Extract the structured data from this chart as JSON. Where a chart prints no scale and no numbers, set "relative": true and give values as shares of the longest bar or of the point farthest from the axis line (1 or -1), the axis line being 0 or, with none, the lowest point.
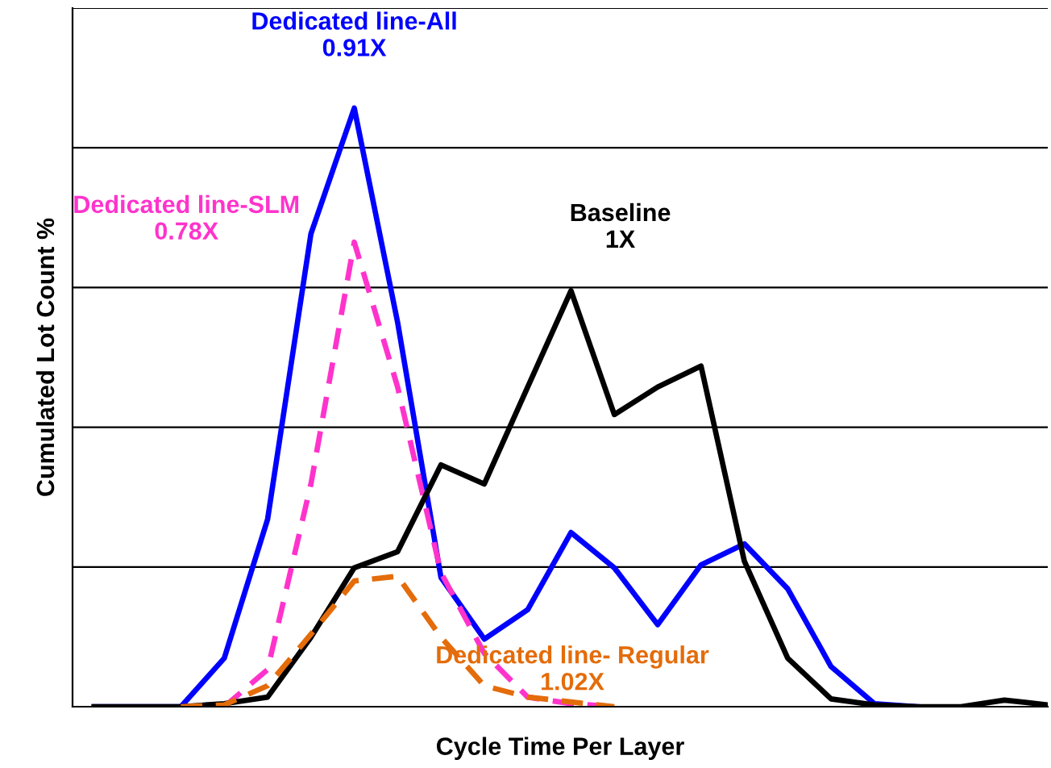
{
  "chart_data": {
    "type": "line",
    "relative": true,
    "xlabel": "Cycle Time Per Layer",
    "ylabel": "Cumulated Lot Count %",
    "grid": "y",
    "legend": false,
    "categories": [
      null,
      null,
      null,
      null,
      null,
      null,
      null,
      null,
      null,
      null,
      null,
      null,
      null,
      null,
      null,
      null,
      null,
      null,
      null,
      null,
      null,
      null,
      null
    ],
    "series": [
      {
        "name": "Dedicated line-All\n0.91X",
        "color": "#0000ff",
        "line_style": "solid",
        "values": [
          0,
          0,
          0,
          0.081,
          0.313,
          0.79,
          1,
          0.642,
          0.216,
          0.113,
          0.162,
          0.291,
          0.232,
          0.137,
          0.237,
          0.272,
          0.197,
          0.067,
          0.005,
          0,
          null,
          null,
          null
        ]
      },
      {
        "name": "Dedicated line-SLM\n0.78X",
        "color": "#ff33cc",
        "line_style": "dashed",
        "values": [
          null,
          null,
          null,
          0,
          0.062,
          0.372,
          0.776,
          0.534,
          0.224,
          0.089,
          0.016,
          0.005,
          0,
          null,
          null,
          null,
          null,
          null,
          null,
          null,
          null,
          null,
          null
        ]
      },
      {
        "name": "Baseline\n1X",
        "color": "#000000",
        "line_style": "solid",
        "values": [
          0,
          0,
          0,
          0.005,
          0.016,
          0.116,
          0.232,
          0.259,
          0.404,
          0.372,
          0.534,
          0.695,
          0.488,
          0.534,
          0.569,
          0.243,
          0.081,
          0.013,
          0.003,
          0,
          0,
          0.011,
          0.003
        ]
      },
      {
        "name": "Dedicated line- Regular\n1.02X",
        "color": "#e46c0a",
        "line_style": "dashed",
        "values": [
          null,
          null,
          0,
          0.003,
          0.035,
          0.121,
          0.21,
          0.218,
          0.116,
          0.035,
          0.016,
          0.008,
          0,
          null,
          null,
          null,
          null,
          null,
          null,
          null,
          null,
          null,
          null
        ]
      }
    ]
  }
}
